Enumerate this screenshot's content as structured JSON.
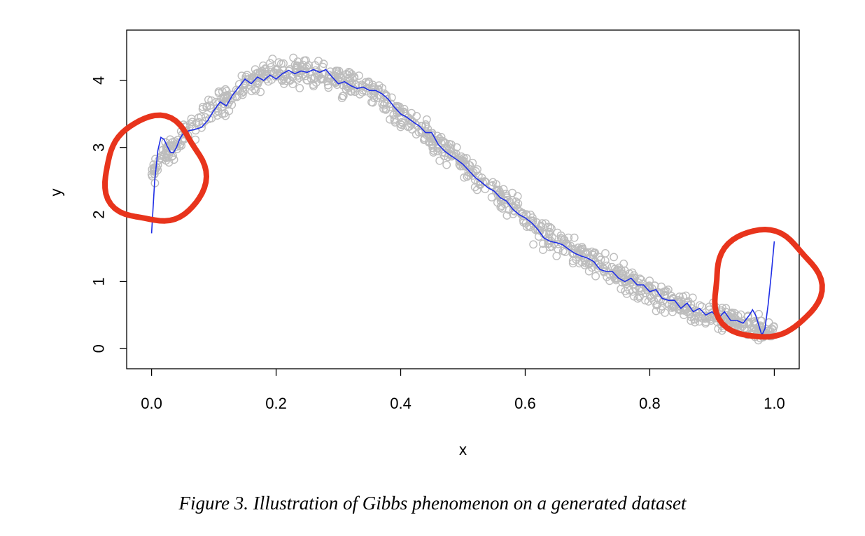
{
  "caption": "Figure 3. Illustration of Gibbs phenomenon on a generated dataset",
  "colors": {
    "points": "#bdbdbd",
    "fit_line": "#1f2ee6",
    "annotation": "#e8341c",
    "axis": "#000000"
  },
  "chart_data": {
    "type": "scatter",
    "title": "",
    "xlabel": "x",
    "ylabel": "y",
    "xlim": [
      -0.04,
      1.04
    ],
    "ylim": [
      -0.3,
      4.75
    ],
    "grid": false,
    "legend": "none",
    "x_ticks": [
      0.0,
      0.2,
      0.4,
      0.6,
      0.8,
      1.0
    ],
    "x_tick_labels": [
      "0.0",
      "0.2",
      "0.4",
      "0.6",
      "0.8",
      "1.0"
    ],
    "y_ticks": [
      0,
      1,
      2,
      3,
      4
    ],
    "y_tick_labels": [
      "0",
      "1",
      "2",
      "3",
      "4"
    ],
    "scatter_series": {
      "marker": "open-circle",
      "approx_count": 1000,
      "x_range": [
        0.0,
        1.0
      ],
      "trend": [
        [
          0.0,
          2.6
        ],
        [
          0.05,
          3.2
        ],
        [
          0.1,
          3.6
        ],
        [
          0.15,
          3.95
        ],
        [
          0.2,
          4.1
        ],
        [
          0.25,
          4.15
        ],
        [
          0.3,
          4.0
        ],
        [
          0.35,
          3.85
        ],
        [
          0.4,
          3.5
        ],
        [
          0.45,
          3.15
        ],
        [
          0.5,
          2.75
        ],
        [
          0.55,
          2.35
        ],
        [
          0.6,
          1.95
        ],
        [
          0.65,
          1.6
        ],
        [
          0.7,
          1.35
        ],
        [
          0.75,
          1.1
        ],
        [
          0.8,
          0.85
        ],
        [
          0.85,
          0.65
        ],
        [
          0.9,
          0.5
        ],
        [
          0.95,
          0.35
        ],
        [
          1.0,
          0.25
        ]
      ],
      "noise_sd": 0.18
    },
    "fit_series": {
      "points": [
        [
          0.0,
          1.72
        ],
        [
          0.005,
          2.5
        ],
        [
          0.01,
          2.95
        ],
        [
          0.015,
          3.15
        ],
        [
          0.02,
          3.12
        ],
        [
          0.025,
          3.02
        ],
        [
          0.03,
          2.93
        ],
        [
          0.035,
          2.92
        ],
        [
          0.04,
          3.0
        ],
        [
          0.045,
          3.12
        ],
        [
          0.05,
          3.2
        ],
        [
          0.06,
          3.25
        ],
        [
          0.07,
          3.27
        ],
        [
          0.08,
          3.3
        ],
        [
          0.09,
          3.4
        ],
        [
          0.1,
          3.55
        ],
        [
          0.11,
          3.68
        ],
        [
          0.12,
          3.62
        ],
        [
          0.13,
          3.78
        ],
        [
          0.14,
          3.9
        ],
        [
          0.15,
          4.02
        ],
        [
          0.16,
          3.95
        ],
        [
          0.17,
          4.05
        ],
        [
          0.18,
          4.0
        ],
        [
          0.19,
          4.08
        ],
        [
          0.2,
          4.02
        ],
        [
          0.21,
          4.1
        ],
        [
          0.22,
          4.15
        ],
        [
          0.23,
          4.1
        ],
        [
          0.24,
          4.14
        ],
        [
          0.25,
          4.12
        ],
        [
          0.26,
          4.16
        ],
        [
          0.27,
          4.12
        ],
        [
          0.28,
          4.16
        ],
        [
          0.29,
          4.05
        ],
        [
          0.3,
          3.95
        ],
        [
          0.31,
          3.98
        ],
        [
          0.32,
          3.92
        ],
        [
          0.33,
          3.88
        ],
        [
          0.34,
          3.9
        ],
        [
          0.35,
          3.85
        ],
        [
          0.36,
          3.85
        ],
        [
          0.37,
          3.8
        ],
        [
          0.38,
          3.72
        ],
        [
          0.39,
          3.6
        ],
        [
          0.4,
          3.5
        ],
        [
          0.41,
          3.45
        ],
        [
          0.42,
          3.38
        ],
        [
          0.43,
          3.32
        ],
        [
          0.44,
          3.22
        ],
        [
          0.45,
          3.22
        ],
        [
          0.46,
          3.05
        ],
        [
          0.47,
          2.95
        ],
        [
          0.48,
          2.88
        ],
        [
          0.49,
          2.82
        ],
        [
          0.5,
          2.75
        ],
        [
          0.51,
          2.65
        ],
        [
          0.52,
          2.55
        ],
        [
          0.53,
          2.48
        ],
        [
          0.54,
          2.4
        ],
        [
          0.55,
          2.35
        ],
        [
          0.56,
          2.25
        ],
        [
          0.57,
          2.2
        ],
        [
          0.58,
          2.08
        ],
        [
          0.59,
          2.0
        ],
        [
          0.6,
          1.95
        ],
        [
          0.61,
          1.88
        ],
        [
          0.62,
          1.78
        ],
        [
          0.63,
          1.65
        ],
        [
          0.64,
          1.6
        ],
        [
          0.65,
          1.58
        ],
        [
          0.66,
          1.55
        ],
        [
          0.67,
          1.48
        ],
        [
          0.68,
          1.42
        ],
        [
          0.69,
          1.38
        ],
        [
          0.7,
          1.35
        ],
        [
          0.71,
          1.3
        ],
        [
          0.72,
          1.18
        ],
        [
          0.73,
          1.15
        ],
        [
          0.74,
          1.15
        ],
        [
          0.75,
          1.05
        ],
        [
          0.76,
          1.0
        ],
        [
          0.77,
          1.05
        ],
        [
          0.78,
          0.95
        ],
        [
          0.79,
          0.95
        ],
        [
          0.8,
          0.85
        ],
        [
          0.81,
          0.88
        ],
        [
          0.82,
          0.75
        ],
        [
          0.83,
          0.72
        ],
        [
          0.84,
          0.72
        ],
        [
          0.85,
          0.6
        ],
        [
          0.86,
          0.68
        ],
        [
          0.87,
          0.55
        ],
        [
          0.88,
          0.6
        ],
        [
          0.89,
          0.5
        ],
        [
          0.9,
          0.55
        ],
        [
          0.91,
          0.45
        ],
        [
          0.92,
          0.55
        ],
        [
          0.93,
          0.42
        ],
        [
          0.94,
          0.42
        ],
        [
          0.95,
          0.38
        ],
        [
          0.96,
          0.5
        ],
        [
          0.965,
          0.58
        ],
        [
          0.97,
          0.5
        ],
        [
          0.975,
          0.35
        ],
        [
          0.98,
          0.2
        ],
        [
          0.985,
          0.3
        ],
        [
          0.99,
          0.65
        ],
        [
          0.995,
          1.1
        ],
        [
          1.0,
          1.6
        ]
      ]
    },
    "annotations": [
      {
        "type": "hand-drawn-circle",
        "center": [
          0.005,
          2.65
        ],
        "radius_x": 0.08,
        "radius_y": 0.78
      },
      {
        "type": "hand-drawn-circle",
        "center": [
          0.985,
          0.95
        ],
        "radius_x": 0.085,
        "radius_y": 0.8
      }
    ]
  }
}
